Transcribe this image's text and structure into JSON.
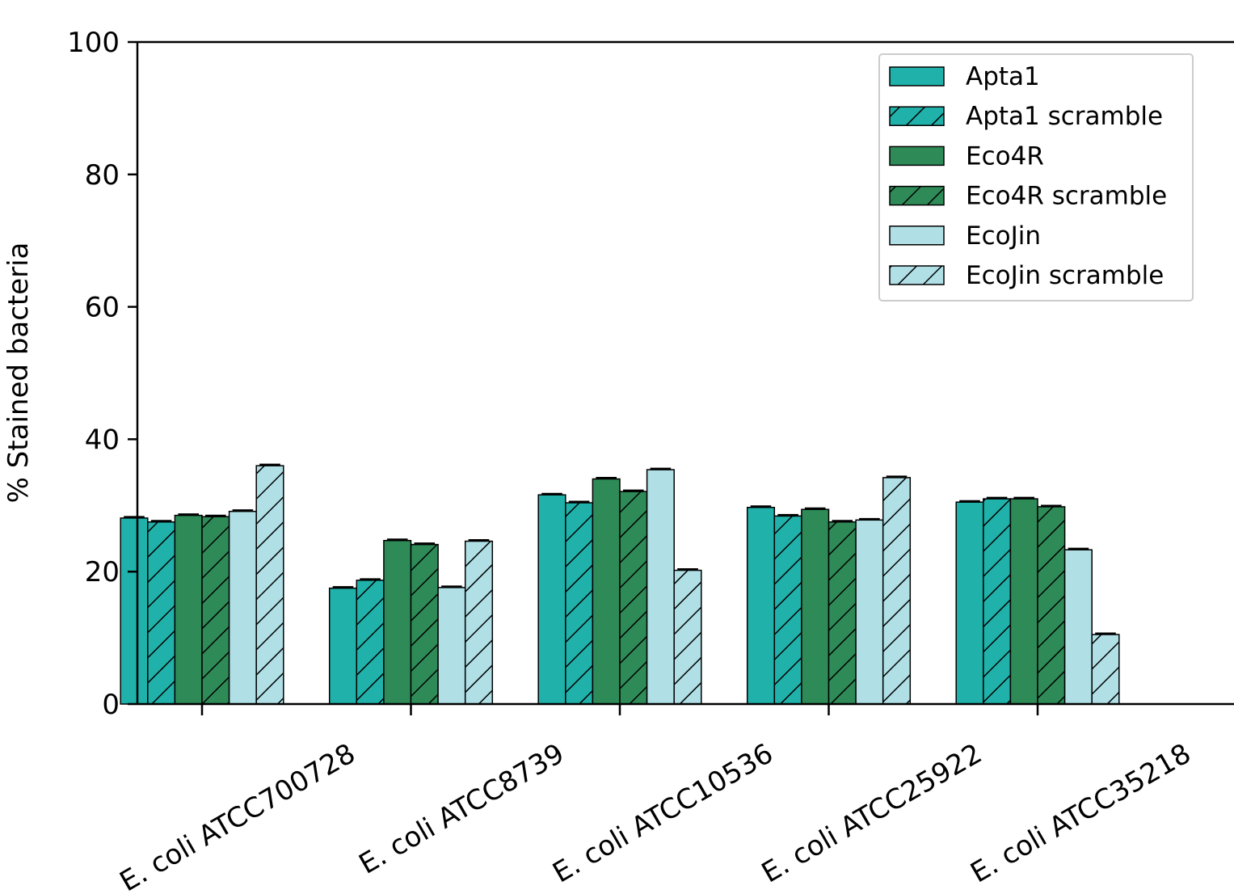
{
  "chart_data": {
    "type": "bar",
    "title": "",
    "xlabel": "",
    "ylabel": "% Stained bacteria",
    "ylim": [
      0,
      100
    ],
    "yticks": [
      0,
      20,
      40,
      60,
      80,
      100
    ],
    "grid": false,
    "legend_position": "top-right",
    "categories": [
      "E. coli ATCC700728",
      "E. coli ATCC8739",
      "E. coli ATCC10536",
      "E. coli ATCC25922",
      "E. coli ATCC35218"
    ],
    "series": [
      {
        "name": "Apta1",
        "color": "#20b2aa",
        "hatch": false,
        "values": [
          28.1,
          17.5,
          31.6,
          29.7,
          30.5
        ]
      },
      {
        "name": "Apta1 scramble",
        "color": "#20b2aa",
        "hatch": true,
        "values": [
          27.5,
          18.7,
          30.4,
          28.4,
          31.0
        ]
      },
      {
        "name": "Eco4R",
        "color": "#2e8b57",
        "hatch": false,
        "values": [
          28.5,
          24.7,
          34.0,
          29.4,
          31.0
        ]
      },
      {
        "name": "Eco4R scramble",
        "color": "#2e8b57",
        "hatch": true,
        "values": [
          28.3,
          24.1,
          32.1,
          27.5,
          29.8
        ]
      },
      {
        "name": "EcoJin",
        "color": "#b0e0e6",
        "hatch": false,
        "values": [
          29.1,
          17.6,
          35.4,
          27.8,
          23.3
        ]
      },
      {
        "name": "EcoJin scramble",
        "color": "#b0e0e6",
        "hatch": true,
        "values": [
          36.0,
          24.6,
          20.2,
          34.2,
          10.5
        ]
      }
    ]
  }
}
